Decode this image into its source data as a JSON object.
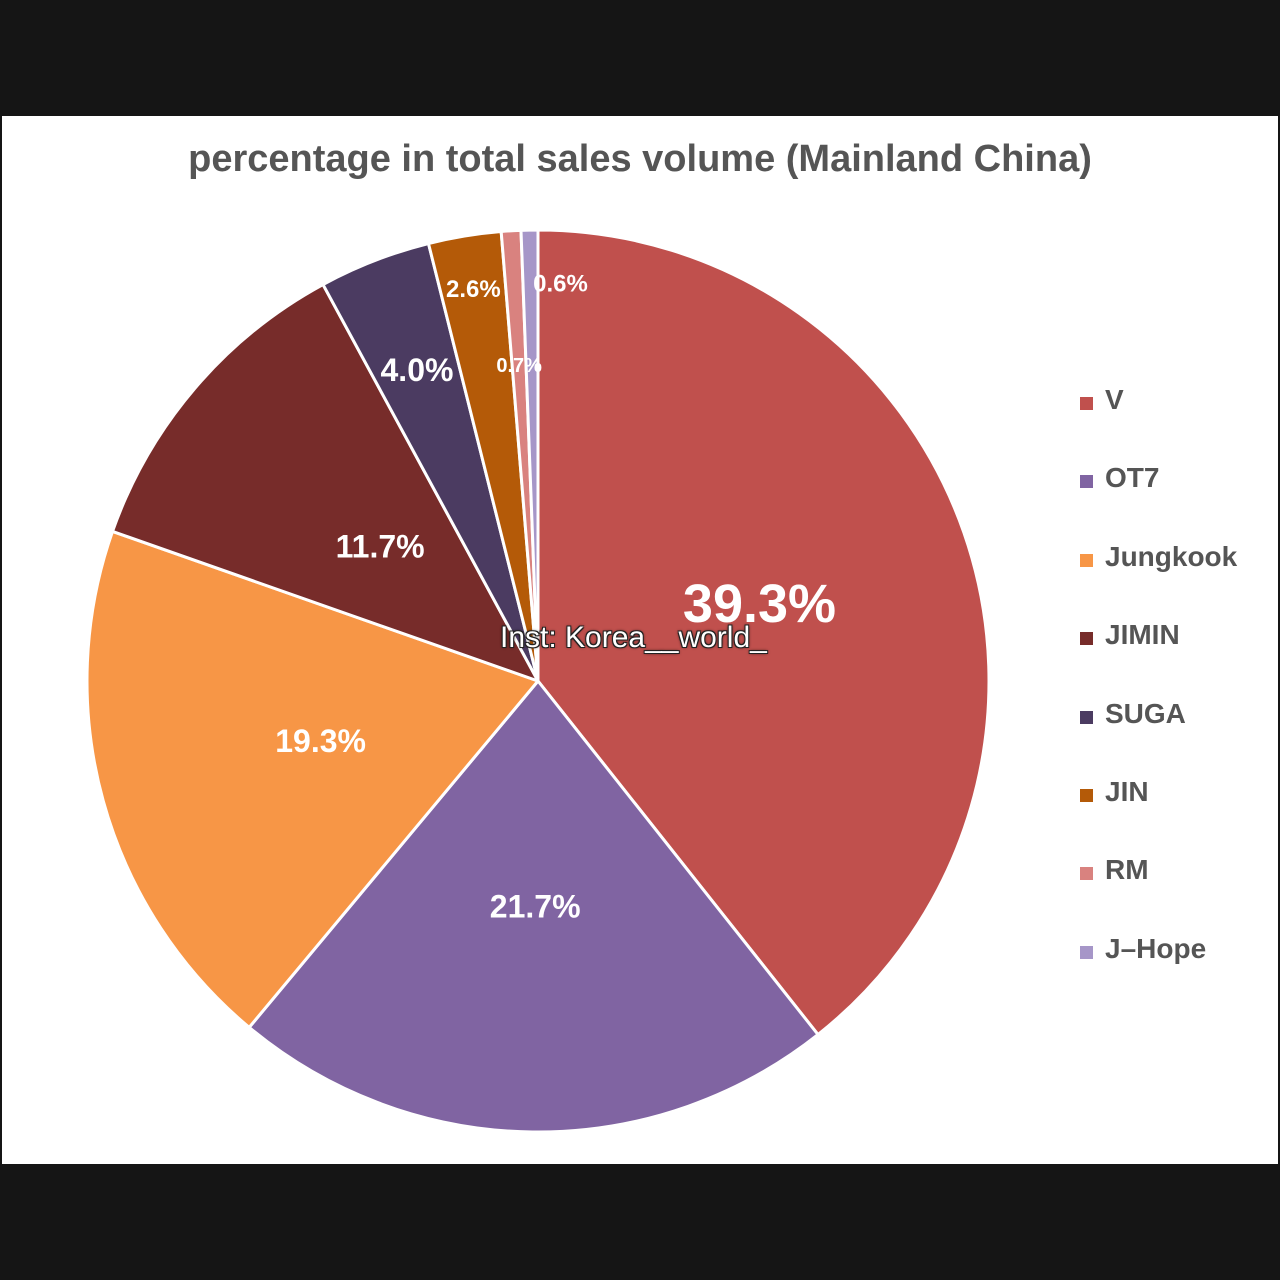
{
  "chart_data": {
    "type": "pie",
    "title": "percentage in total sales volume (Mainland China)",
    "start_angle_deg": 0,
    "direction": "clockwise",
    "legend_position": "right",
    "categories": [
      "V",
      "OT7",
      "Jungkook",
      "JIMIN",
      "SUGA",
      "JIN",
      "RM",
      "J-Hope"
    ],
    "values": [
      39.3,
      21.7,
      19.3,
      11.7,
      4.0,
      2.6,
      0.7,
      0.6
    ],
    "data_labels": [
      "39.3%",
      "21.7%",
      "19.3%",
      "11.7%",
      "4.0%",
      "2.6%",
      "0.7%",
      "0.6%"
    ],
    "colors": [
      "#c0504d",
      "#8064a2",
      "#f79646",
      "#772c2a",
      "#4b3b61",
      "#b45a08",
      "#d9827f",
      "#a696c8"
    ],
    "label_colors": [
      "#ffffff",
      "#ffffff",
      "#ffffff",
      "#ffffff",
      "#ffffff",
      "#ffffff",
      "#ffffff",
      "#ffffff"
    ],
    "label_font_sizes": [
      54,
      32,
      32,
      32,
      32,
      24,
      20,
      24
    ]
  },
  "legend": {
    "items": [
      "V",
      "OT7",
      "Jungkook",
      "JIMIN",
      "SUGA",
      "JIN",
      "RM",
      "J–Hope"
    ]
  },
  "watermark": "Inst: Korea__world_"
}
